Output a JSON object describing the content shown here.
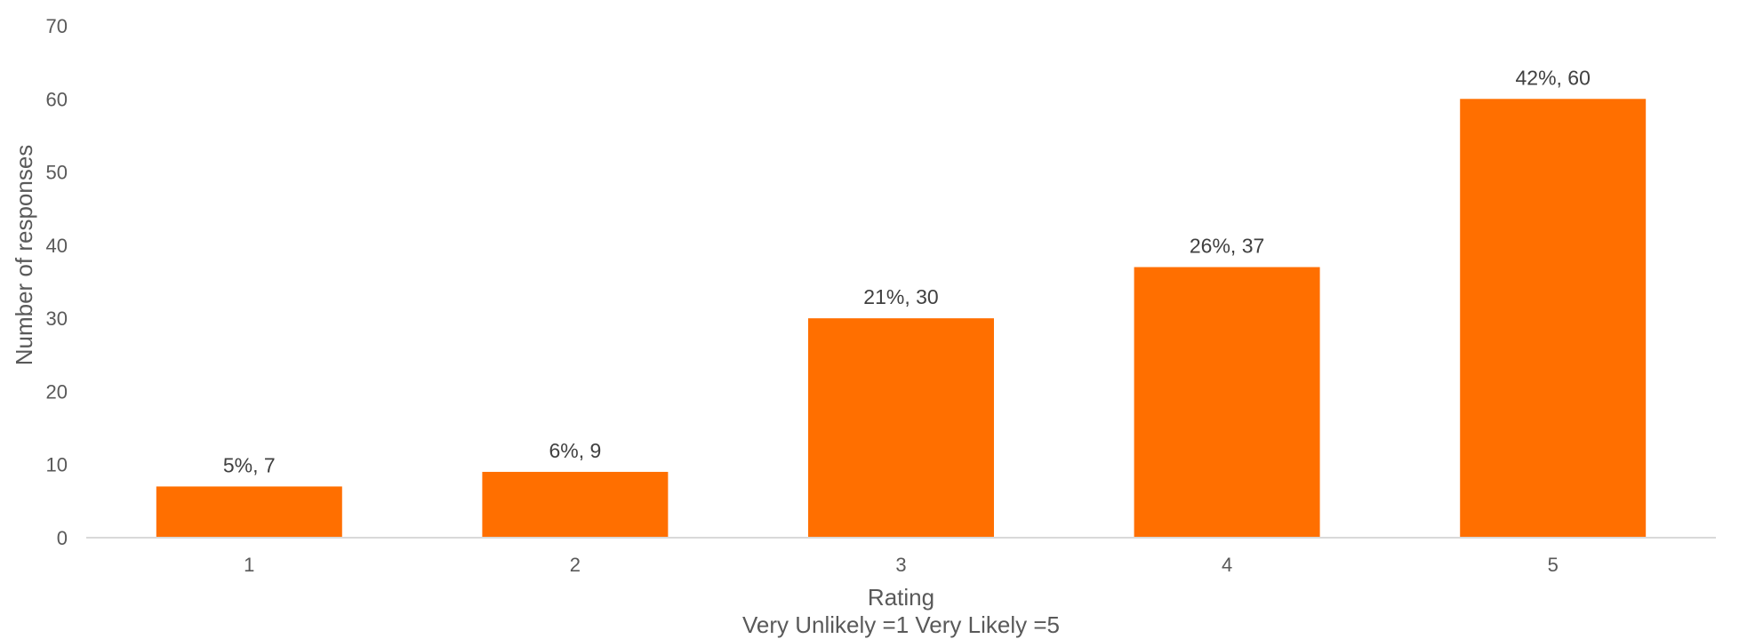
{
  "chart_data": {
    "type": "bar",
    "categories": [
      "1",
      "2",
      "3",
      "4",
      "5"
    ],
    "values": [
      7,
      9,
      30,
      37,
      60
    ],
    "data_labels": [
      "5%, 7",
      "6%, 9",
      "21%, 30",
      "26%, 37",
      "42%, 60"
    ],
    "title": "",
    "xlabel": "Rating",
    "xlabel_sub": "Very Unlikely =1  Very Likely =5",
    "ylabel": "Number of responses",
    "ylim": [
      0,
      70
    ],
    "yticks": [
      0,
      10,
      20,
      30,
      40,
      50,
      60,
      70
    ],
    "bar_color": "#FF6F00",
    "axis_color": "#D9D9D9",
    "grid": false,
    "legend": "none"
  }
}
